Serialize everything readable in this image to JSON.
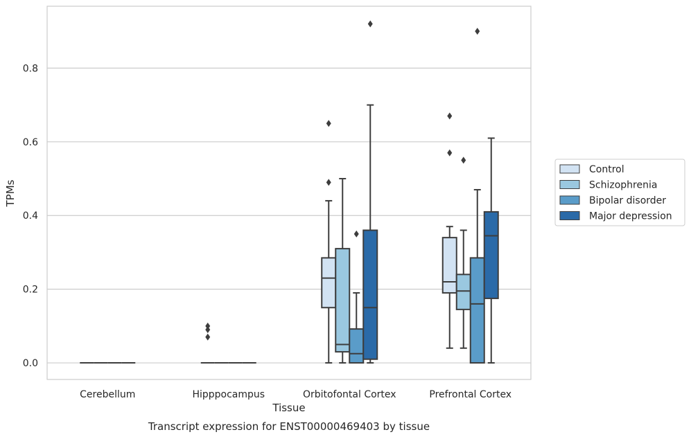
{
  "chart_data": {
    "type": "box",
    "title": "Transcript expression for ENST00000469403 by tissue",
    "xlabel": "Tissue",
    "ylabel": "TPMs",
    "ylim": [
      -0.045,
      0.968
    ],
    "yticks": [
      "0.0",
      "0.2",
      "0.4",
      "0.6",
      "0.8"
    ],
    "grid": "horizontal",
    "legend_position": "right",
    "categories": [
      "Cerebellum",
      "Hipppocampus",
      "Orbitofontal Cortex",
      "Prefrontal Cortex"
    ],
    "series": [
      {
        "name": "Control",
        "color": "#d2e3f3",
        "boxes": [
          {
            "min": 0,
            "q1": 0,
            "median": 0,
            "q3": 0,
            "max": 0,
            "outliers": []
          },
          {
            "min": 0,
            "q1": 0,
            "median": 0,
            "q3": 0,
            "max": 0,
            "outliers": [
              0.07,
              0.09,
              0.1
            ]
          },
          {
            "min": 0,
            "q1": 0.15,
            "median": 0.23,
            "q3": 0.285,
            "max": 0.44,
            "outliers": [
              0.49,
              0.65
            ]
          },
          {
            "min": 0.04,
            "q1": 0.19,
            "median": 0.22,
            "q3": 0.34,
            "max": 0.37,
            "outliers": [
              0.57,
              0.67
            ]
          }
        ]
      },
      {
        "name": "Schizophrenia",
        "color": "#9ac8e0",
        "boxes": [
          {
            "min": 0,
            "q1": 0,
            "median": 0,
            "q3": 0,
            "max": 0,
            "outliers": []
          },
          {
            "min": 0,
            "q1": 0,
            "median": 0,
            "q3": 0,
            "max": 0,
            "outliers": []
          },
          {
            "min": 0,
            "q1": 0.03,
            "median": 0.05,
            "q3": 0.31,
            "max": 0.5,
            "outliers": []
          },
          {
            "min": 0.04,
            "q1": 0.145,
            "median": 0.195,
            "q3": 0.24,
            "max": 0.36,
            "outliers": [
              0.55
            ]
          }
        ]
      },
      {
        "name": "Bipolar disorder",
        "color": "#5a9cc9",
        "boxes": [
          {
            "min": 0,
            "q1": 0,
            "median": 0,
            "q3": 0,
            "max": 0,
            "outliers": []
          },
          {
            "min": 0,
            "q1": 0,
            "median": 0,
            "q3": 0,
            "max": 0,
            "outliers": []
          },
          {
            "min": 0,
            "q1": 0,
            "median": 0.025,
            "q3": 0.092,
            "max": 0.19,
            "outliers": [
              0.35
            ]
          },
          {
            "min": 0,
            "q1": 0,
            "median": 0.16,
            "q3": 0.285,
            "max": 0.47,
            "outliers": [
              0.9
            ]
          }
        ]
      },
      {
        "name": "Major depression",
        "color": "#2a6aa8",
        "boxes": [
          {
            "min": 0,
            "q1": 0,
            "median": 0,
            "q3": 0,
            "max": 0,
            "outliers": []
          },
          {
            "min": 0,
            "q1": 0,
            "median": 0,
            "q3": 0,
            "max": 0,
            "outliers": []
          },
          {
            "min": 0,
            "q1": 0.01,
            "median": 0.15,
            "q3": 0.36,
            "max": 0.7,
            "outliers": [
              0.92
            ]
          },
          {
            "min": 0,
            "q1": 0.175,
            "median": 0.345,
            "q3": 0.41,
            "max": 0.61,
            "outliers": []
          }
        ]
      }
    ]
  }
}
